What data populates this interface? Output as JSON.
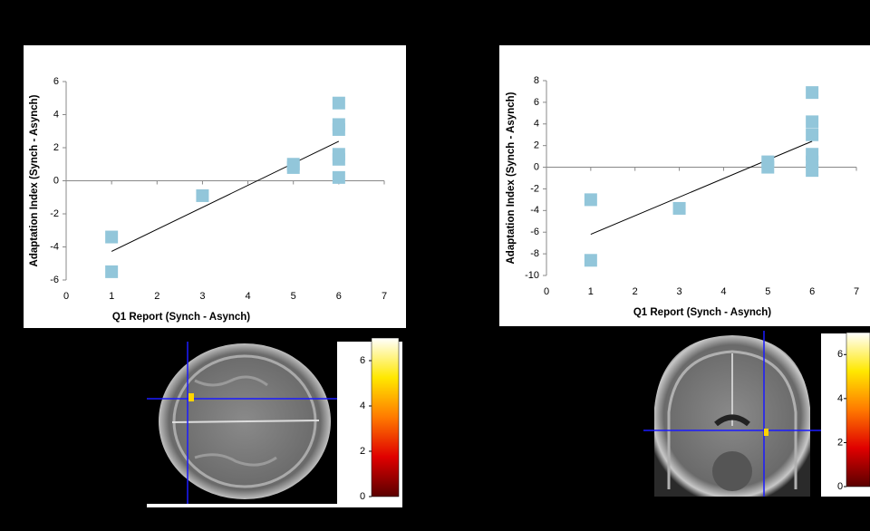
{
  "chart_data": [
    {
      "type": "scatter",
      "x_label": "Q1 Report (Synch - Asynch)",
      "y_label": "Adaptation Index (Synch - Asynch)",
      "x": [
        1,
        1,
        3,
        5,
        5,
        6,
        6,
        6,
        6,
        6,
        6
      ],
      "values": [
        -3.4,
        -5.5,
        -0.9,
        0.8,
        1.0,
        4.7,
        3.4,
        3.1,
        1.6,
        1.3,
        0.2
      ],
      "color": "#92c6da",
      "trendline": true,
      "xlim": [
        0,
        7
      ],
      "xticks": [
        0,
        1,
        2,
        3,
        4,
        5,
        6,
        7
      ],
      "ylim": [
        -6,
        6
      ],
      "yticks": [
        -6,
        -4,
        -2,
        0,
        2,
        4,
        6
      ]
    },
    {
      "type": "scatter",
      "x_label": "Q1 Report (Synch - Asynch)",
      "y_label": "Adaptation Index (Synch - Asynch)",
      "x": [
        1,
        1,
        3,
        5,
        5,
        6,
        6,
        6,
        6,
        6,
        6
      ],
      "values": [
        -3.0,
        -8.6,
        -3.8,
        0.5,
        0.0,
        6.9,
        4.2,
        3.0,
        1.2,
        0.5,
        -0.3
      ],
      "color": "#92c6da",
      "trendline": true,
      "xlim": [
        0,
        7
      ],
      "xticks": [
        0,
        1,
        2,
        3,
        4,
        5,
        6,
        7
      ],
      "ylim": [
        -10,
        8
      ],
      "yticks": [
        -10,
        -8,
        -6,
        -4,
        -2,
        0,
        2,
        4,
        6,
        8
      ]
    }
  ],
  "colorbars": [
    {
      "lim": [
        0,
        7
      ],
      "ticks": [
        0,
        2,
        4,
        6
      ]
    },
    {
      "lim": [
        0,
        7
      ],
      "ticks": [
        0,
        2,
        4,
        6
      ]
    }
  ]
}
